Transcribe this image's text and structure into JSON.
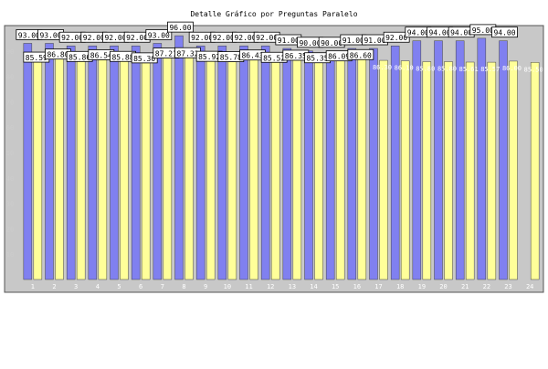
{
  "chart_data": {
    "type": "bar",
    "title": "Detalle Gráfico por Preguntas Paralelo",
    "categories": [
      "1",
      "2",
      "3",
      "4",
      "5",
      "6",
      "7",
      "8",
      "9",
      "10",
      "11",
      "12",
      "13",
      "14",
      "15",
      "16",
      "17",
      "18",
      "19",
      "20",
      "21",
      "22",
      "23",
      "24"
    ],
    "yticks": [
      10,
      20,
      30,
      40,
      50,
      60,
      70,
      80,
      90
    ],
    "ylim": [
      0,
      100
    ],
    "grid": false,
    "series": [
      {
        "color": "#8080f0",
        "values": [
          93.0,
          93.0,
          92.0,
          92.0,
          92.0,
          92.0,
          93.0,
          96.0,
          92.0,
          92.0,
          92.0,
          92.0,
          91.0,
          90.0,
          90.0,
          91.0,
          91.0,
          92.0,
          94.0,
          94.0,
          94.0,
          95.0,
          94.0,
          0
        ]
      },
      {
        "color": "#ffff99",
        "values": [
          85.59,
          86.8,
          85.86,
          86.54,
          85.88,
          85.3,
          87.21,
          87.32,
          85.92,
          85.78,
          86.43,
          85.52,
          86.35,
          85.35,
          86.09,
          86.6,
          86.3,
          86.1,
          85.8,
          85.8,
          85.61,
          85.57,
          86.0,
          85.5
        ]
      }
    ]
  }
}
